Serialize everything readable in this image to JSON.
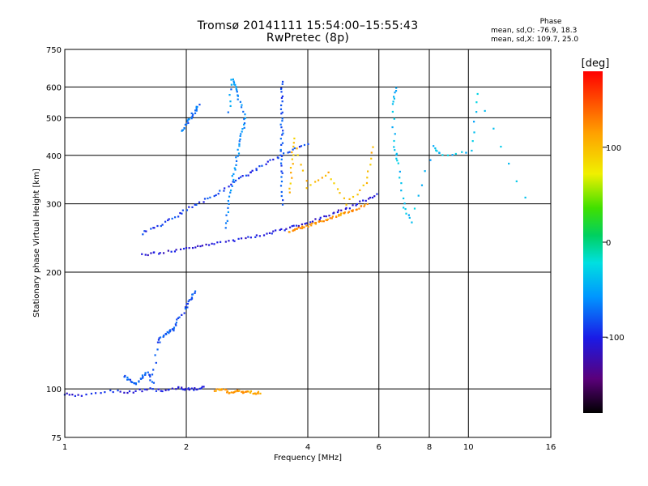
{
  "title": "Tromsø 20141111 15:54:00–15:55:43",
  "subtitle": "RwPretec (8p)",
  "phase_info": {
    "heading": "Phase",
    "line_o": "mean, sd,O: -76.9, 18.3",
    "line_x": "mean, sd,X: 109.7, 25.0"
  },
  "colorbar": {
    "label": "[deg]",
    "range": [
      -180,
      180
    ],
    "ticks": [
      {
        "value": 100,
        "label": "100"
      },
      {
        "value": 0,
        "label": "0"
      },
      {
        "value": -100,
        "label": "-100"
      }
    ]
  },
  "chart_data": {
    "type": "scatter",
    "title": "Tromsø 20141111 15:54:00–15:55:43",
    "subtitle": "RwPretec (8p)",
    "xlabel": "Frequency [MHz]",
    "ylabel": "Stationary phase Virtual Height [km]",
    "x_scale": "log",
    "y_scale": "log",
    "xlim": [
      1,
      16
    ],
    "ylim": [
      75,
      750
    ],
    "x_ticks": [
      1,
      2,
      4,
      6,
      8,
      10,
      16
    ],
    "x_tick_labels": [
      "1",
      "2",
      "4",
      "6",
      "8",
      "10",
      "16"
    ],
    "y_ticks": [
      75,
      100,
      200,
      300,
      400,
      500,
      600,
      750
    ],
    "y_tick_labels": [
      "75",
      "100",
      "200",
      "300",
      "400",
      "500",
      "600",
      "750"
    ],
    "grid": true,
    "traces": [
      {
        "name": "",
        "phase": -105,
        "x": [
          1.55,
          1.7,
          1.9,
          2.1,
          2.3,
          2.6,
          2.9,
          3.2,
          3.5,
          3.8,
          4.2,
          4.6,
          5.0,
          5.5,
          5.9
        ],
        "y": [
          222,
          224,
          228,
          232,
          236,
          241,
          246,
          252,
          258,
          265,
          273,
          282,
          292,
          305,
          318
        ]
      },
      {
        "name": "",
        "phase": -90,
        "x": [
          1.55,
          1.7,
          1.85,
          2.0,
          2.2,
          2.4,
          2.6,
          2.8,
          3.0,
          3.3,
          3.6,
          4.0
        ],
        "y": [
          252,
          262,
          275,
          290,
          305,
          320,
          340,
          355,
          370,
          390,
          410,
          430
        ]
      },
      {
        "name": "",
        "phase": -70,
        "x": [
          1.95,
          2.0,
          2.05,
          2.1,
          2.15
        ],
        "y": [
          460,
          480,
          500,
          520,
          540
        ]
      },
      {
        "name": "",
        "phase": -60,
        "x": [
          2.5,
          2.55,
          2.6,
          2.65,
          2.7,
          2.75,
          2.8,
          2.7,
          2.65,
          2.6,
          2.55
        ],
        "y": [
          260,
          300,
          340,
          380,
          420,
          460,
          500,
          560,
          600,
          630,
          520
        ]
      },
      {
        "name": "",
        "phase": -80,
        "x": [
          3.45,
          3.45,
          3.45,
          3.45,
          3.45,
          3.45,
          3.45
        ],
        "y": [
          300,
          350,
          400,
          450,
          500,
          560,
          620
        ]
      },
      {
        "name": "",
        "phase": 120,
        "x": [
          3.6,
          3.75,
          3.9,
          4.1,
          4.3,
          4.55,
          4.8,
          5.0,
          5.3,
          5.6
        ],
        "y": [
          255,
          258,
          262,
          266,
          270,
          275,
          280,
          285,
          292,
          300
        ]
      },
      {
        "name": "",
        "phase": 100,
        "x": [
          3.6,
          3.65,
          3.7,
          4.0,
          4.5,
          5.0,
          5.6,
          5.8
        ],
        "y": [
          320,
          380,
          440,
          330,
          360,
          300,
          340,
          420
        ]
      },
      {
        "name": "",
        "phase": -100,
        "x": [
          1.0,
          1.1,
          1.3,
          1.45,
          1.6,
          1.75,
          1.9,
          2.0,
          2.1,
          2.2
        ],
        "y": [
          97,
          96,
          99,
          98,
          100,
          99,
          101,
          100,
          100,
          101
        ]
      },
      {
        "name": "",
        "phase": 115,
        "x": [
          2.35,
          2.45,
          2.55,
          2.65,
          2.75,
          2.85,
          2.95,
          3.05
        ],
        "y": [
          99,
          100,
          98,
          99,
          98,
          99,
          97,
          98
        ]
      },
      {
        "name": "",
        "phase": -80,
        "x": [
          1.4,
          1.45,
          1.5,
          1.55,
          1.6,
          1.65,
          1.7,
          1.75,
          1.8,
          1.85,
          1.9,
          2.0,
          2.05,
          2.1
        ],
        "y": [
          108,
          105,
          103,
          107,
          110,
          104,
          132,
          137,
          140,
          142,
          150,
          162,
          170,
          178
        ]
      },
      {
        "name": "",
        "phase": -40,
        "x": [
          6.6,
          6.5,
          6.55,
          6.7,
          6.9,
          7.2,
          8.2,
          8.6,
          10.2,
          10.5,
          13.8
        ],
        "y": [
          600,
          540,
          420,
          380,
          300,
          270,
          420,
          400,
          410,
          580,
          310
        ]
      }
    ]
  }
}
